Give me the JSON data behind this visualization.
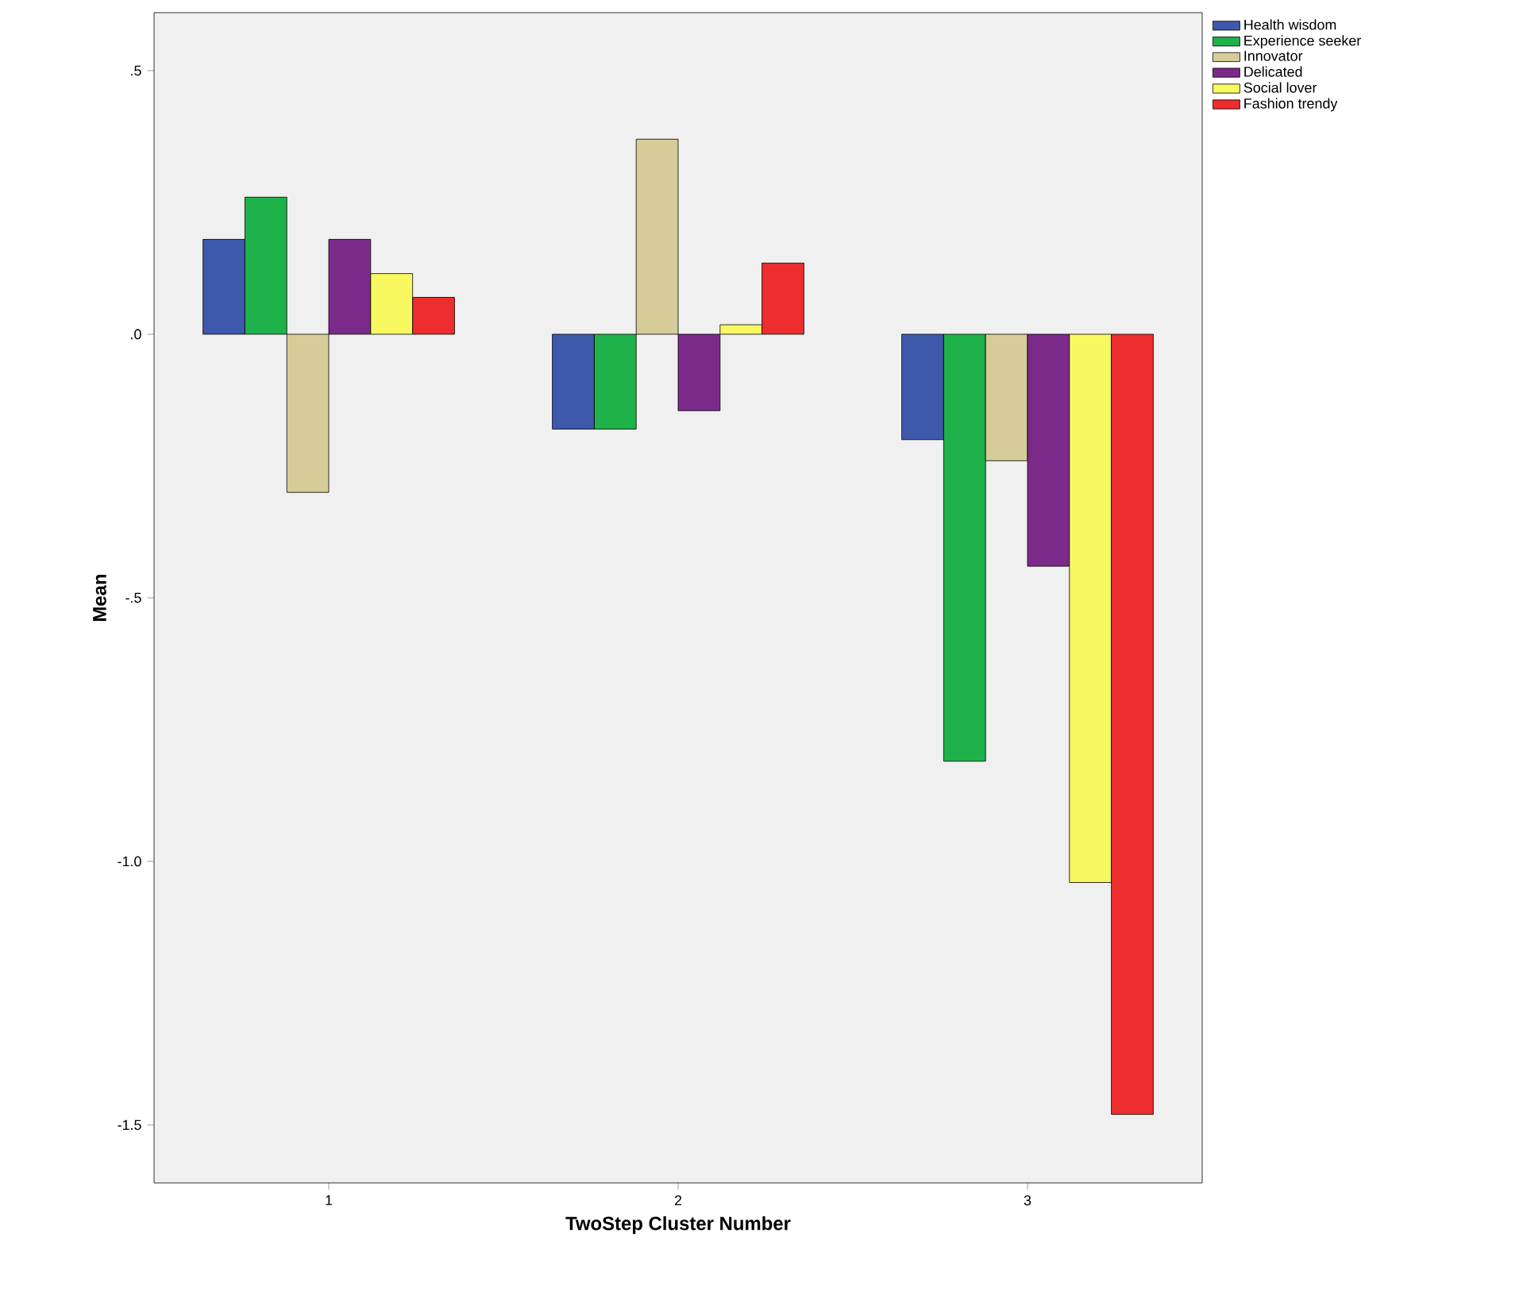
{
  "chart_data": {
    "type": "bar",
    "xlabel": "TwoStep Cluster Number",
    "ylabel": "Mean",
    "categories": [
      "1",
      "2",
      "3"
    ],
    "series": [
      {
        "name": "Health wisdom",
        "color": "#3e58ac",
        "values": [
          0.18,
          -0.18,
          -0.2
        ]
      },
      {
        "name": "Experience seeker",
        "color": "#1fb14a",
        "values": [
          0.26,
          -0.18,
          -0.81
        ]
      },
      {
        "name": "Innovator",
        "color": "#d5cc97",
        "values": [
          -0.3,
          0.37,
          -0.24
        ]
      },
      {
        "name": "Delicated",
        "color": "#7c2a8a",
        "values": [
          0.18,
          -0.145,
          -0.44
        ]
      },
      {
        "name": "Social lover",
        "color": "#f8f861",
        "values": [
          0.115,
          0.018,
          -1.04
        ]
      },
      {
        "name": "Fashion trendy",
        "color": "#ed2d2e",
        "values": [
          0.07,
          0.135,
          -1.48
        ]
      }
    ],
    "ylim": [
      -1.61,
      0.61
    ],
    "yticks": [
      {
        "value": 0.5,
        "label": ".5"
      },
      {
        "value": 0,
        "label": ".0"
      },
      {
        "value": -0.5,
        "label": "-.5"
      },
      {
        "value": -1,
        "label": "-1.0"
      },
      {
        "value": -1.5,
        "label": "-1.5"
      }
    ],
    "legend": "top right"
  }
}
